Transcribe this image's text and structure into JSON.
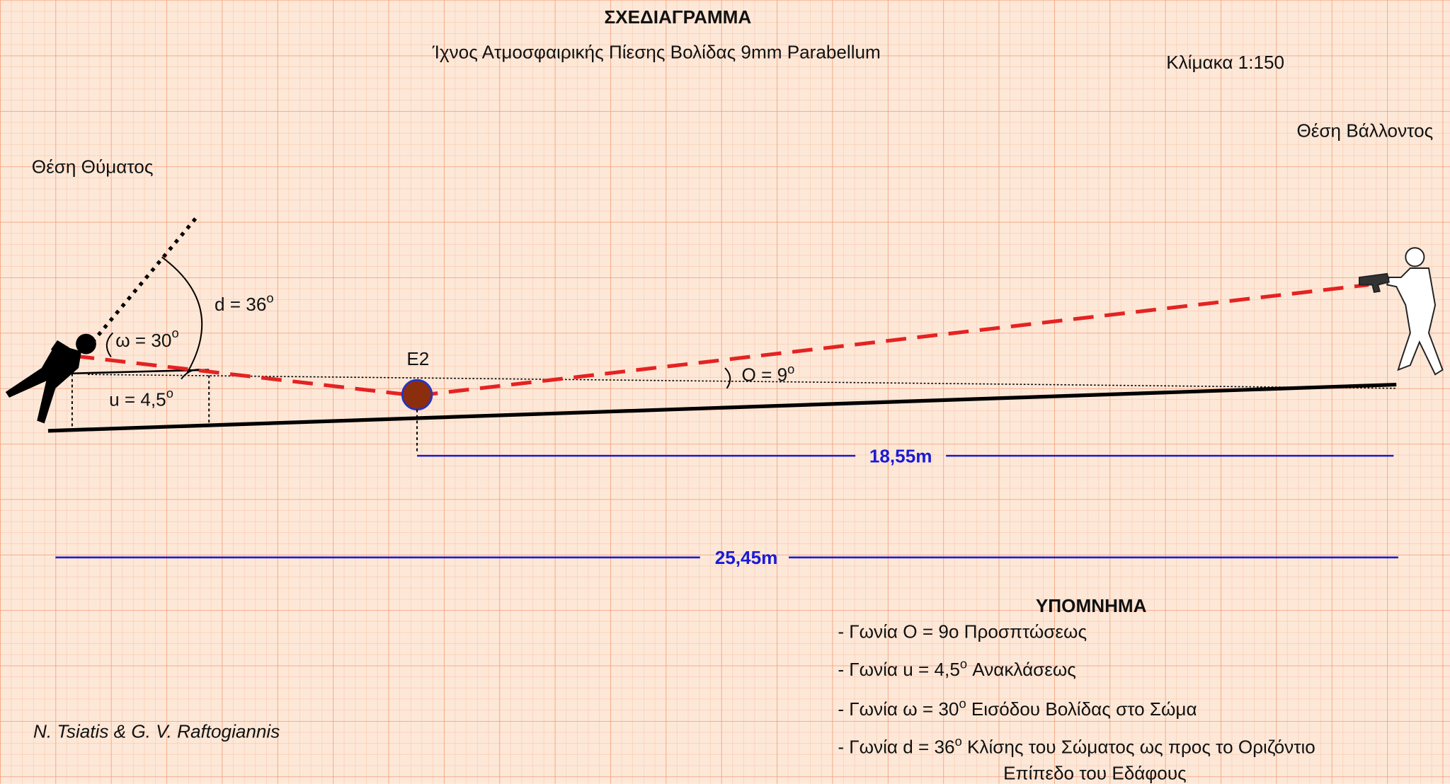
{
  "header": {
    "title": "ΣΧΕΔΙΑΓΡΑΜΜΑ",
    "subtitle": "Ίχνος Ατμοσφαιρικής Πίεσης Βολίδας 9mm Parabellum",
    "scale": "Κλίμακα 1:150"
  },
  "positions": {
    "shooter": "Θέση Βάλλοντος",
    "victim": "Θέση Θύματος"
  },
  "angles": [
    {
      "label": "d = 36",
      "sup": "o"
    },
    {
      "label": "ω = 30",
      "sup": "o"
    },
    {
      "label": "u =  4,5",
      "sup": "o"
    },
    {
      "label": "O = 9",
      "sup": "o"
    }
  ],
  "marker": "E2",
  "distances": [
    "18,55m",
    "25,45m"
  ],
  "legend": {
    "title": "ΥΠΟΜΝΗΜΑ",
    "items": [
      {
        "text": "- Γωνία   O = 9o Προσπτώσεως"
      },
      {
        "text": "- Γωνία   u = 4,5",
        "sup": "o",
        "rest": " Ανακλάσεως"
      },
      {
        "text": "- Γωνία  ω = 30",
        "sup": "o",
        "rest": " Εισόδου Βολίδας στο Σώμα"
      },
      {
        "text": "- Γωνία   d = 36",
        "sup": "o",
        "rest": " Κλίσης του Σώματος ως προς το Οριζόντιο",
        "line2": "Επίπεδο του Εδάφους"
      }
    ]
  },
  "author": "N. Tsiatis & G. V. Raftogiannis"
}
